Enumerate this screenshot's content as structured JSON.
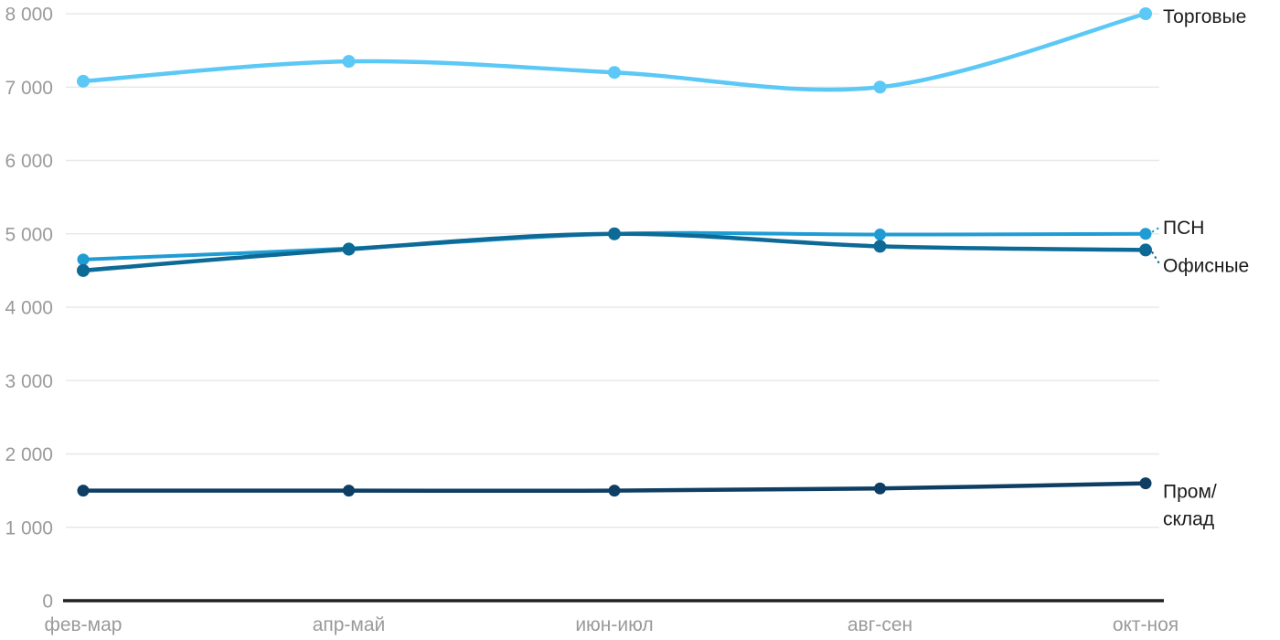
{
  "chart_data": {
    "type": "line",
    "title": "",
    "xlabel": "",
    "ylabel": "",
    "categories": [
      "фев-мар",
      "апр-май",
      "июн-июл",
      "авг-сен",
      "окт-ноя"
    ],
    "series": [
      {
        "id": "torgovye",
        "name": "Торговые",
        "color": "#5BC8F5",
        "values": [
          7080,
          7350,
          7200,
          7000,
          8000
        ],
        "label_lines": [
          "Торговые"
        ],
        "label_dy": 10,
        "connector": false,
        "line_width": 4.5,
        "dot_radius": 7
      },
      {
        "id": "psn",
        "name": "ПСН",
        "color": "#1F9CD3",
        "values": [
          4650,
          4800,
          5000,
          4990,
          5000
        ],
        "label_lines": [
          "ПСН"
        ],
        "label_dy": 0,
        "connector": true,
        "line_width": 4,
        "dot_radius": 6.5
      },
      {
        "id": "ofisnye",
        "name": "Офисные",
        "color": "#0D6A96",
        "values": [
          4500,
          4790,
          5000,
          4830,
          4780
        ],
        "label_lines": [
          "Офисные"
        ],
        "label_dy": 24,
        "connector": true,
        "line_width": 4.5,
        "dot_radius": 7
      },
      {
        "id": "prom-sklad",
        "name": "Пром/склад",
        "color": "#0E3E63",
        "values": [
          1500,
          1500,
          1500,
          1530,
          1600
        ],
        "label_lines": [
          "Пром/",
          "склад"
        ],
        "label_dy": 16,
        "connector": false,
        "line_width": 4.5,
        "dot_radius": 6.5
      }
    ],
    "y_axis": {
      "min": 0,
      "max": 8000,
      "step": 1000,
      "tick_labels": [
        "0",
        "1 000",
        "2 000",
        "3 000",
        "4 000",
        "5 000",
        "6 000",
        "7 000",
        "8 000"
      ]
    },
    "x_axis": {
      "tick_labels": [
        "фев-мар",
        "апр-май",
        "июн-июл",
        "авг-сен",
        "окт-ноя"
      ]
    },
    "grid": true,
    "legend_position": "right-inline",
    "colors": {
      "background": "#FFFFFF",
      "gridline": "#E8E8E8",
      "axis_line": "#212121",
      "tick_label": "#9A9A9A",
      "series_label": "#1B1B1B"
    }
  }
}
